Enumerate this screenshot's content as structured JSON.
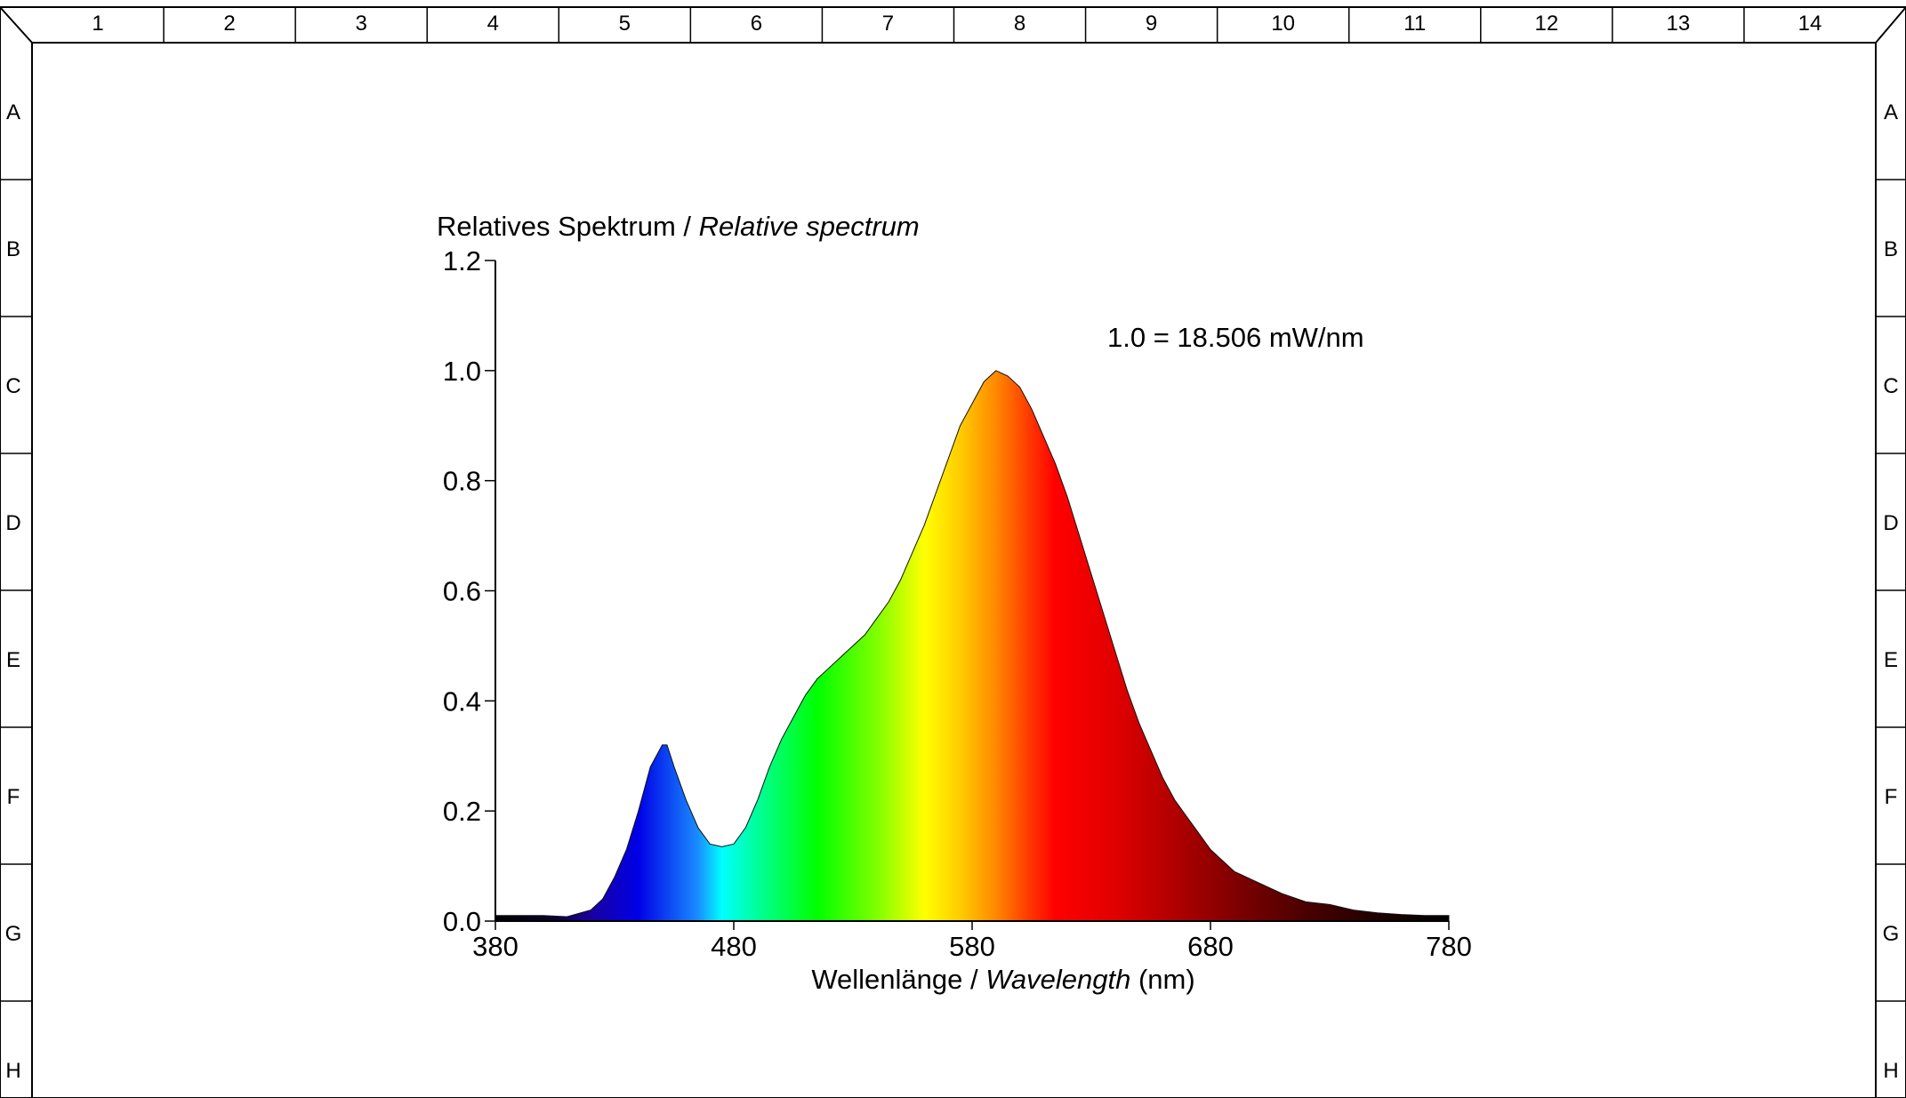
{
  "frame": {
    "columns": [
      "1",
      "2",
      "3",
      "4",
      "5",
      "6",
      "7",
      "8",
      "9",
      "10",
      "11",
      "12",
      "13",
      "14"
    ],
    "rows": [
      "A",
      "B",
      "C",
      "D",
      "E",
      "F",
      "G",
      "H"
    ]
  },
  "chart_data": {
    "type": "area",
    "ylabel_main": "Relatives Spektrum / ",
    "ylabel_italic": "Relative spectrum",
    "xlabel_main": "Wellenlänge / ",
    "xlabel_italic": "Wavelength",
    "xlabel_unit": " (nm)",
    "annotation": "1.0 = 18.506 mW/nm",
    "xlim": [
      380,
      780
    ],
    "ylim": [
      0,
      1.2
    ],
    "x_ticks": [
      {
        "value": 380,
        "label": "380"
      },
      {
        "value": 480,
        "label": "480"
      },
      {
        "value": 580,
        "label": "580"
      },
      {
        "value": 680,
        "label": "680"
      },
      {
        "value": 780,
        "label": "780"
      }
    ],
    "y_ticks": [
      {
        "value": 0.0,
        "label": "0.0"
      },
      {
        "value": 0.2,
        "label": "0.2"
      },
      {
        "value": 0.4,
        "label": "0.4"
      },
      {
        "value": 0.6,
        "label": "0.6"
      },
      {
        "value": 0.8,
        "label": "0.8"
      },
      {
        "value": 1.0,
        "label": "1.0"
      },
      {
        "value": 1.2,
        "label": "1.2"
      }
    ],
    "x": [
      380,
      390,
      400,
      410,
      420,
      425,
      430,
      435,
      440,
      445,
      450,
      452,
      455,
      460,
      465,
      470,
      475,
      480,
      485,
      490,
      495,
      500,
      505,
      510,
      515,
      520,
      525,
      530,
      535,
      540,
      545,
      550,
      555,
      560,
      565,
      570,
      575,
      580,
      585,
      590,
      595,
      600,
      605,
      610,
      615,
      620,
      625,
      630,
      635,
      640,
      645,
      650,
      655,
      660,
      665,
      670,
      675,
      680,
      690,
      700,
      710,
      720,
      730,
      740,
      750,
      760,
      770,
      780
    ],
    "values": [
      0.01,
      0.01,
      0.01,
      0.008,
      0.02,
      0.04,
      0.08,
      0.13,
      0.2,
      0.28,
      0.32,
      0.32,
      0.28,
      0.22,
      0.17,
      0.14,
      0.135,
      0.14,
      0.17,
      0.22,
      0.28,
      0.33,
      0.37,
      0.41,
      0.44,
      0.46,
      0.48,
      0.5,
      0.52,
      0.55,
      0.58,
      0.62,
      0.67,
      0.72,
      0.78,
      0.84,
      0.9,
      0.94,
      0.98,
      1.0,
      0.99,
      0.97,
      0.93,
      0.88,
      0.83,
      0.77,
      0.7,
      0.63,
      0.56,
      0.49,
      0.42,
      0.36,
      0.31,
      0.26,
      0.22,
      0.19,
      0.16,
      0.13,
      0.09,
      0.07,
      0.05,
      0.035,
      0.03,
      0.02,
      0.015,
      0.012,
      0.01,
      0.01
    ],
    "colors": {
      "gradient": [
        {
          "wl": 380,
          "color": "#000000"
        },
        {
          "wl": 405,
          "color": "#0a0034"
        },
        {
          "wl": 420,
          "color": "#1a00a0"
        },
        {
          "wl": 440,
          "color": "#0000e6"
        },
        {
          "wl": 465,
          "color": "#1a8cff"
        },
        {
          "wl": 475,
          "color": "#00ffff"
        },
        {
          "wl": 490,
          "color": "#00ff99"
        },
        {
          "wl": 515,
          "color": "#00ff00"
        },
        {
          "wl": 540,
          "color": "#80ff00"
        },
        {
          "wl": 560,
          "color": "#ffff00"
        },
        {
          "wl": 575,
          "color": "#ffcc00"
        },
        {
          "wl": 590,
          "color": "#ff8800"
        },
        {
          "wl": 605,
          "color": "#ff3300"
        },
        {
          "wl": 615,
          "color": "#ff0000"
        },
        {
          "wl": 640,
          "color": "#e00000"
        },
        {
          "wl": 665,
          "color": "#b00000"
        },
        {
          "wl": 690,
          "color": "#800000"
        },
        {
          "wl": 720,
          "color": "#4a0000"
        },
        {
          "wl": 750,
          "color": "#200000"
        },
        {
          "wl": 780,
          "color": "#000000"
        }
      ]
    }
  }
}
